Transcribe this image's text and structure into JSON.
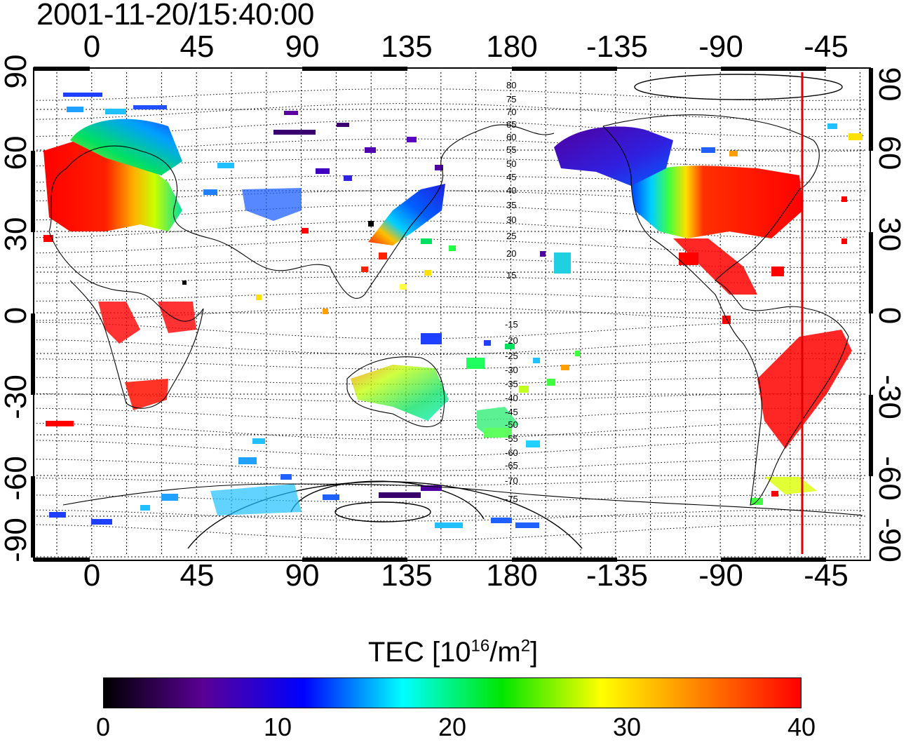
{
  "timestamp": "2001-11-20/15:40:00",
  "map": {
    "top_lon_labels": [
      "0",
      "45",
      "90",
      "135",
      "180",
      "-135",
      "-90",
      "-45"
    ],
    "bottom_lon_labels": [
      "0",
      "45",
      "90",
      "135",
      "180",
      "-135",
      "-90",
      "-45"
    ],
    "left_lat_labels": [
      "90",
      "60",
      "30",
      "0",
      "-30",
      "-60",
      "-90"
    ],
    "right_lat_labels": [
      "90",
      "60",
      "30",
      "0",
      "-30",
      "-60",
      "-90"
    ],
    "magnetic_lat_labels_north": [
      "80",
      "75",
      "70",
      "65",
      "60",
      "55",
      "50",
      "45",
      "40",
      "35",
      "30",
      "25",
      "20",
      "15"
    ],
    "magnetic_lat_labels_south": [
      "-15",
      "-20",
      "-25",
      "-30",
      "-35",
      "-40",
      "-45",
      "-50",
      "-55",
      "-60",
      "-65",
      "-70",
      "-75"
    ],
    "terminator_color": "#e00000"
  },
  "colorbar": {
    "title_main": "TEC  [10",
    "title_sup1": "16",
    "title_mid": "/m",
    "title_sup2": "2",
    "title_end": "]",
    "min": 0,
    "max": 40,
    "tick_labels": [
      "0",
      "10",
      "20",
      "30",
      "40"
    ],
    "colors": [
      "#000000",
      "#5a0096",
      "#0000ff",
      "#00ffff",
      "#00e600",
      "#ffff00",
      "#ff8000",
      "#ff0000"
    ]
  }
}
